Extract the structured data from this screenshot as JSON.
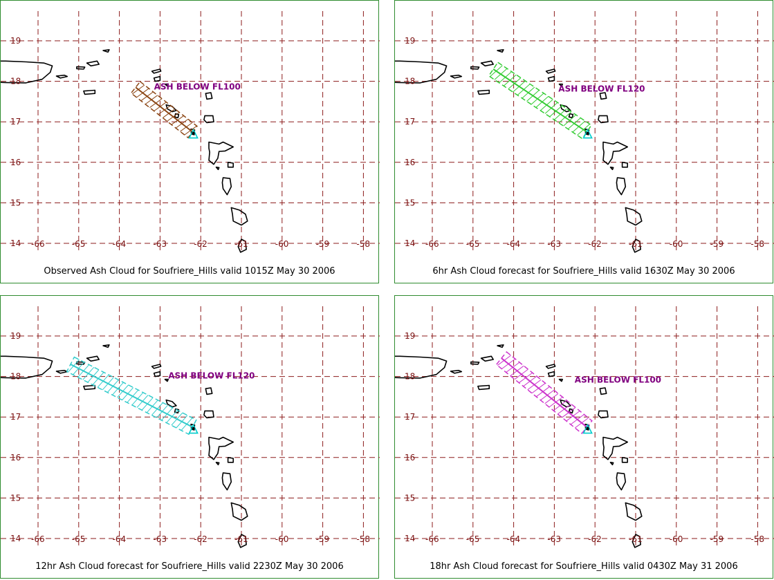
{
  "lat_ticks": [
    "19",
    "18",
    "17",
    "16",
    "15",
    "14"
  ],
  "lon_ticks": [
    "-66",
    "-65",
    "-64",
    "-63",
    "-62",
    "-61",
    "-60",
    "-59",
    "-58"
  ],
  "panels": [
    {
      "caption": "Observed Ash Cloud for Soufriere_Hills valid 1015Z May 30 2006",
      "cloud_label": "ASH BELOW  FL100",
      "cloud_color": "#8b4513",
      "label_color": "#800080",
      "plume": {
        "start_lon": -63.6,
        "start_lat": 17.85,
        "end_lon": -62.2,
        "end_lat": 16.75,
        "half_width_deg": 0.18
      },
      "label_anchor": {
        "lon": -63.15,
        "lat": 17.8
      }
    },
    {
      "caption": "6hr Ash Cloud forecast for Soufriere_Hills valid 1630Z May 30 2006",
      "cloud_label": "ASH BELOW  FL120",
      "cloud_color": "#33cc33",
      "label_color": "#800080",
      "plume": {
        "start_lon": -64.5,
        "start_lat": 18.3,
        "end_lon": -62.2,
        "end_lat": 16.75,
        "half_width_deg": 0.2
      },
      "label_anchor": {
        "lon": -62.9,
        "lat": 17.75
      }
    },
    {
      "caption": "12hr Ash Cloud forecast for Soufriere_Hills valid 2230Z May 30 2006",
      "cloud_label": "ASH BELOW  FL120",
      "cloud_color": "#33cccc",
      "label_color": "#800080",
      "plume": {
        "start_lon": -65.2,
        "start_lat": 18.3,
        "end_lon": -62.2,
        "end_lat": 16.75,
        "half_width_deg": 0.2
      },
      "label_anchor": {
        "lon": -62.8,
        "lat": 17.95
      }
    },
    {
      "caption": "18hr Ash Cloud forecast for Soufriere_Hills valid 0430Z May 31 2006",
      "cloud_label": "ASH BELOW  FL100",
      "cloud_color": "#cc33cc",
      "label_color": "#800080",
      "plume": {
        "start_lon": -64.3,
        "start_lat": 18.45,
        "end_lon": -62.2,
        "end_lat": 16.75,
        "half_width_deg": 0.2
      },
      "label_anchor": {
        "lon": -62.5,
        "lat": 17.85
      }
    }
  ],
  "volcano_marker_color": "#00cccc",
  "volcano": {
    "lon": -62.18,
    "lat": 16.72
  }
}
